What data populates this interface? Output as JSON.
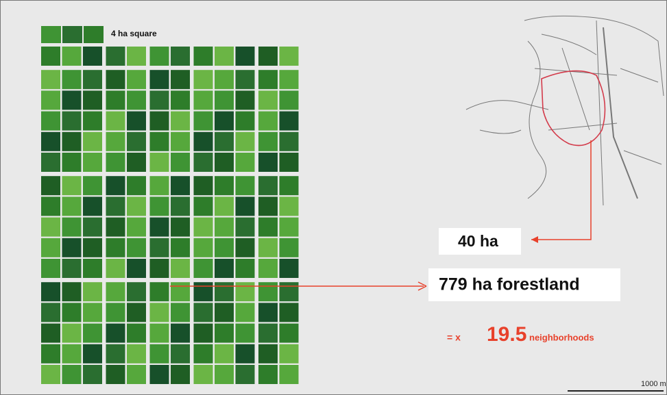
{
  "legend": {
    "label": "4 ha square"
  },
  "callouts": {
    "area": "40 ha",
    "forest": "779 ha forestland"
  },
  "ratio": {
    "prefix": "= x",
    "value": 19.5,
    "suffix": "neighborhoods"
  },
  "scale_bar": {
    "label": "1000 m"
  }
}
